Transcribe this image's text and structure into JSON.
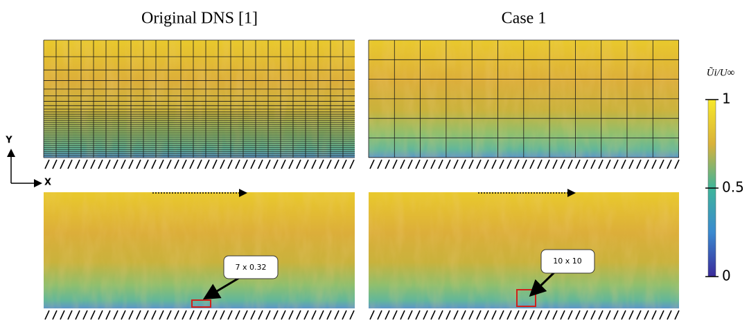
{
  "panels": {
    "left_title": "Original DNS [1]",
    "right_title": "Case 1"
  },
  "axes": {
    "y_label": "Y",
    "x_label": "X"
  },
  "annotations": {
    "left": "7 x 0.32",
    "right": "10 x 10"
  },
  "colorbar": {
    "label": "Ũi/U∞",
    "lim": [
      0,
      1
    ],
    "ticks": [
      0,
      0.5,
      1
    ]
  }
}
